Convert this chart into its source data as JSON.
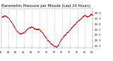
{
  "title": "Barometric Pressure per Minute (Last 24 Hours)",
  "line_color": "#dd0000",
  "background_color": "#ffffff",
  "grid_color": "#bbbbbb",
  "ylim": [
    29.05,
    30.45
  ],
  "ytick_values": [
    29.1,
    29.3,
    29.5,
    29.7,
    29.9,
    30.1,
    30.3
  ],
  "ytick_labels": [
    "29.1",
    "29.3",
    "29.5",
    "29.7",
    "29.9",
    "30.1",
    "30.3"
  ],
  "num_points": 1440,
  "title_fontsize": 3.8,
  "tick_fontsize": 2.8,
  "pressure_keypoints": [
    [
      0,
      30.15
    ],
    [
      1,
      30.2
    ],
    [
      2,
      30.1
    ],
    [
      3,
      29.9
    ],
    [
      4,
      29.65
    ],
    [
      5,
      29.55
    ],
    [
      6,
      29.6
    ],
    [
      7,
      29.75
    ],
    [
      8,
      29.8
    ],
    [
      9,
      29.72
    ],
    [
      10,
      29.7
    ],
    [
      11,
      29.55
    ],
    [
      12,
      29.35
    ],
    [
      13,
      29.2
    ],
    [
      14,
      29.1
    ],
    [
      14.5,
      29.08
    ],
    [
      15,
      29.15
    ],
    [
      15.5,
      29.3
    ],
    [
      16,
      29.4
    ],
    [
      17,
      29.55
    ],
    [
      18,
      29.7
    ],
    [
      19,
      29.85
    ],
    [
      20,
      30.0
    ],
    [
      21,
      30.1
    ],
    [
      21.5,
      30.18
    ],
    [
      22,
      30.22
    ],
    [
      22.5,
      30.15
    ],
    [
      23,
      30.2
    ],
    [
      23.5,
      30.25
    ],
    [
      24,
      30.22
    ]
  ]
}
